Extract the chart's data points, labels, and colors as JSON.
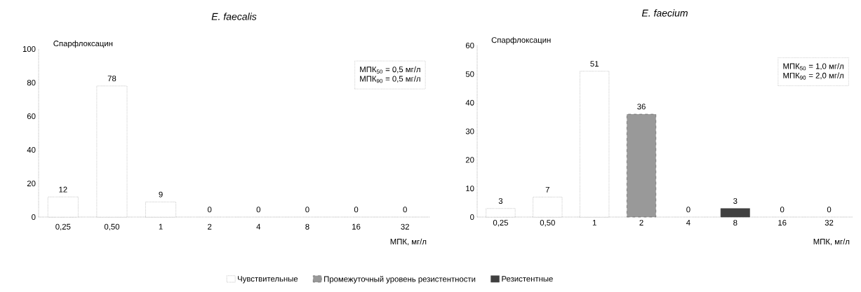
{
  "chart_data": [
    {
      "type": "bar",
      "title": "E. faecalis",
      "subtitle": "Спарфлоксацин",
      "xlabel": "МПК, мг/л",
      "categories": [
        "0,25",
        "0,50",
        "1",
        "2",
        "4",
        "8",
        "16",
        "32"
      ],
      "series": [
        {
          "color": "#ffffff",
          "line_style": "dotted",
          "values": [
            12,
            78,
            9,
            0,
            0,
            0,
            0,
            0
          ]
        }
      ],
      "data_labels": true,
      "ylim": [
        0,
        100
      ],
      "yticks": [
        0,
        20,
        40,
        60,
        80,
        100
      ],
      "annotations": [
        "МПК$_{50}$ = 0,5 мг/л",
        "МПК$_{90}$ = 0,5 мг/л"
      ]
    },
    {
      "type": "bar",
      "title": "E. faecium",
      "subtitle": "Спарфлоксацин",
      "xlabel": "МПК, мг/л",
      "categories": [
        "0,25",
        "0,50",
        "1",
        "2",
        "4",
        "8",
        "16",
        "32"
      ],
      "stacked": true,
      "series": [
        {
          "name": "Чувствительные",
          "color": "#ffffff",
          "line_style": "dotted",
          "values": [
            3,
            7,
            51,
            0,
            0,
            0,
            0,
            0
          ],
          "value_labels": [
            "3",
            "7",
            "51",
            null,
            "0",
            null,
            "0",
            "0"
          ]
        },
        {
          "name": "Промежуточный уровень резистентности",
          "color": "#999999",
          "line_style": "dashed",
          "values": [
            0,
            0,
            0,
            36,
            0,
            0,
            0,
            0
          ],
          "value_labels": [
            null,
            null,
            null,
            "36",
            null,
            null,
            null,
            null
          ]
        },
        {
          "name": "Резистентные",
          "color": "#404040",
          "line_style": "solid",
          "values": [
            0,
            0,
            0,
            0,
            0,
            3,
            0,
            0
          ],
          "value_labels": [
            null,
            null,
            null,
            null,
            null,
            "3",
            null,
            null
          ]
        }
      ],
      "legend": "bottom",
      "ylim": [
        0,
        60
      ],
      "yticks": [
        0,
        10,
        20,
        30,
        40,
        50,
        60
      ],
      "annotations": [
        "МПК$_{50}$ = 1,0 мг/л",
        "МПК$_{90}$ = 2,0 мг/л"
      ]
    }
  ]
}
